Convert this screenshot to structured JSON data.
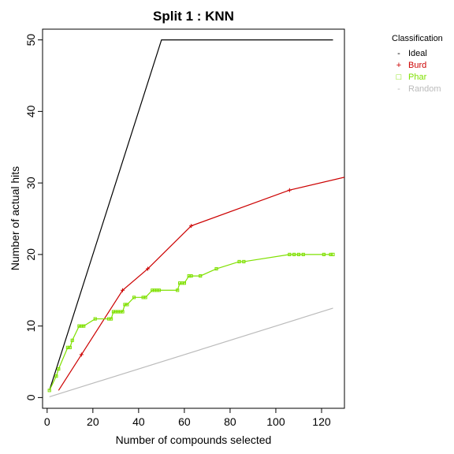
{
  "chart_data": {
    "type": "line",
    "title": "Split 1 : KNN",
    "xlabel": "Number of compounds selected",
    "ylabel": "Number of actual hits",
    "xlim": [
      -2,
      130
    ],
    "ylim": [
      -1.5,
      51.5
    ],
    "xticks": [
      0,
      20,
      40,
      60,
      80,
      100,
      120
    ],
    "yticks": [
      0,
      10,
      20,
      30,
      40,
      50
    ],
    "grid": false,
    "legend": {
      "title": "Classification",
      "position": "top-right"
    },
    "series": [
      {
        "name": "Ideal",
        "color": "#000000",
        "marker": "none",
        "legend_symbol": "-",
        "x": [
          1,
          50,
          125
        ],
        "y": [
          1,
          50,
          50
        ]
      },
      {
        "name": "Burd",
        "color": "#cc0000",
        "marker": "plus",
        "legend_symbol": "+",
        "x": [
          5,
          15,
          33,
          44,
          63,
          106,
          130
        ],
        "y": [
          1,
          6,
          15,
          18,
          24,
          29,
          30.8
        ],
        "marked": [
          false,
          true,
          true,
          true,
          true,
          true,
          false
        ]
      },
      {
        "name": "Phar",
        "color": "#7fe000",
        "marker": "square",
        "legend_symbol": "□",
        "x": [
          1,
          4,
          5,
          9,
          10,
          11,
          14,
          15,
          16,
          21,
          27,
          28,
          29,
          30,
          31,
          32,
          33,
          34,
          35,
          38,
          42,
          43,
          46,
          47,
          48,
          49,
          57,
          58,
          59,
          60,
          62,
          63,
          67,
          74,
          84,
          86,
          106,
          108,
          110,
          112,
          121,
          124,
          125
        ],
        "y": [
          1,
          3,
          4,
          7,
          7,
          8,
          10,
          10,
          10,
          11,
          11,
          11,
          12,
          12,
          12,
          12,
          12,
          13,
          13,
          14,
          14,
          14,
          15,
          15,
          15,
          15,
          15,
          16,
          16,
          16,
          17,
          17,
          17,
          18,
          19,
          19,
          20,
          20,
          20,
          20,
          20,
          20,
          20
        ]
      },
      {
        "name": "Random",
        "color": "#bbbbbb",
        "marker": "none",
        "legend_symbol": "-",
        "x": [
          1,
          125
        ],
        "y": [
          0.1,
          12.5
        ]
      }
    ]
  }
}
